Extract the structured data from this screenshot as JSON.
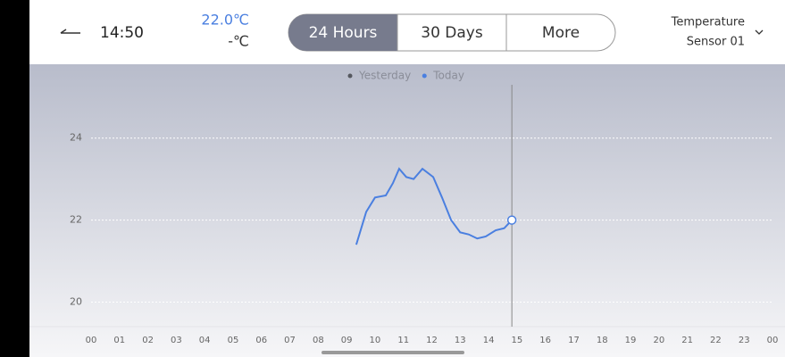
{
  "header": {
    "time": "14:50",
    "current_value": "22.0℃",
    "secondary_value": "-℃",
    "tabs": [
      "24 Hours",
      "30 Days",
      "More"
    ],
    "selected_tab": 0,
    "sensor_type": "Temperature",
    "sensor_name": "Sensor 01"
  },
  "chart_data": {
    "type": "line",
    "series": [
      {
        "name": "Yesterday",
        "color": "#55585f",
        "x": [],
        "values": []
      },
      {
        "name": "Today",
        "color": "#4a7fe0",
        "x": [
          9.34,
          9.69,
          10.0,
          10.38,
          10.63,
          10.85,
          11.1,
          11.36,
          11.67,
          12.05,
          12.36,
          12.68,
          13.0,
          13.3,
          13.6,
          13.9,
          14.25,
          14.55,
          14.82
        ],
        "values": [
          21.4,
          22.2,
          22.55,
          22.6,
          22.9,
          23.25,
          23.05,
          23.0,
          23.25,
          23.05,
          22.55,
          22.0,
          21.7,
          21.65,
          21.55,
          21.6,
          21.75,
          21.8,
          22.0
        ]
      }
    ],
    "xlim": [
      0,
      24
    ],
    "xticks": [
      {
        "value": 0,
        "label": "00"
      },
      {
        "value": 1,
        "label": "01"
      },
      {
        "value": 2,
        "label": "02"
      },
      {
        "value": 3,
        "label": "03"
      },
      {
        "value": 4,
        "label": "04"
      },
      {
        "value": 5,
        "label": "05"
      },
      {
        "value": 6,
        "label": "06"
      },
      {
        "value": 7,
        "label": "07"
      },
      {
        "value": 8,
        "label": "08"
      },
      {
        "value": 9,
        "label": "09"
      },
      10,
      11,
      12,
      13,
      14,
      15,
      16,
      17,
      18,
      19,
      20,
      21,
      22,
      23,
      {
        "value": 24,
        "label": "00"
      }
    ],
    "ylim": [
      19.4,
      25.8
    ],
    "yticks": [
      20,
      22,
      24
    ],
    "grid": true
  }
}
